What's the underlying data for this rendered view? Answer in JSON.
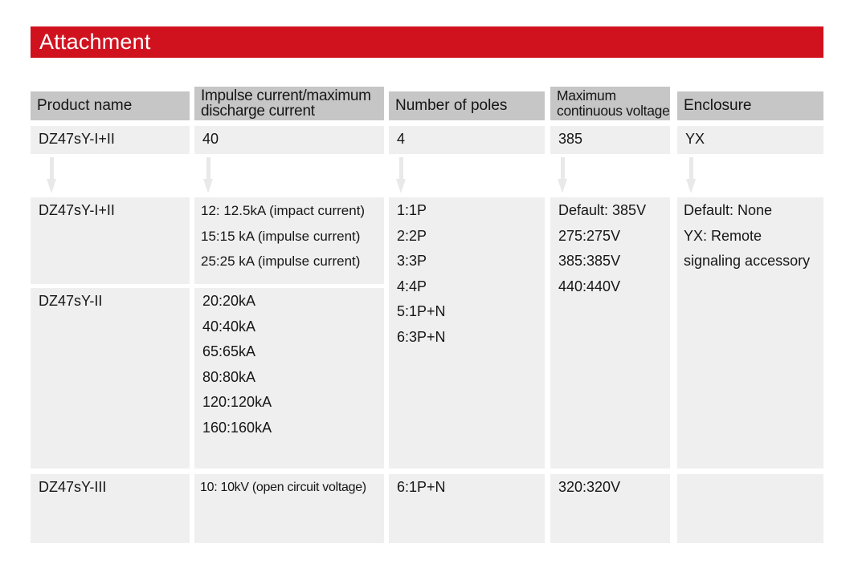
{
  "title": "Attachment",
  "colors": {
    "accent_red": "#d0121f",
    "header_gray": "#c6c6c6",
    "cell_gray": "#efefef",
    "arrow_gray": "#e9e9e9"
  },
  "table": {
    "headers": [
      "Product name",
      "Impulse current/maximum discharge current",
      "Number of poles",
      "Maximum continuous voltage",
      "Enclosure"
    ],
    "selected_row": {
      "product_name": "DZ47sY-I+II",
      "impulse_current": "40",
      "poles": "4",
      "voltage": "385",
      "enclosure": "YX"
    },
    "details": {
      "products": [
        {
          "name": "DZ47sY-I+II",
          "impulse_options": [
            "12: 12.5kA (impact current)",
            "15:15 kA (impulse current)",
            "25:25 kA (impulse current)"
          ]
        },
        {
          "name": "DZ47sY-II",
          "impulse_options": [
            "20:20kA",
            "40:40kA",
            "65:65kA",
            "80:80kA",
            "120:120kA",
            "160:160kA"
          ]
        }
      ],
      "poles_options": [
        "1:1P",
        "2:2P",
        "3:3P",
        "4:4P",
        "5:1P+N",
        "6:3P+N"
      ],
      "voltage_options": [
        "Default: 385V",
        "275:275V",
        "385:385V",
        "440:440V"
      ],
      "enclosure_options": [
        "Default: None",
        "YX: Remote signaling accessory"
      ],
      "third_row": {
        "name": "DZ47sY-III",
        "impulse": "10: 10kV (open circuit voltage)",
        "poles": "6:1P+N",
        "voltage": "320:320V",
        "enclosure": ""
      }
    }
  }
}
